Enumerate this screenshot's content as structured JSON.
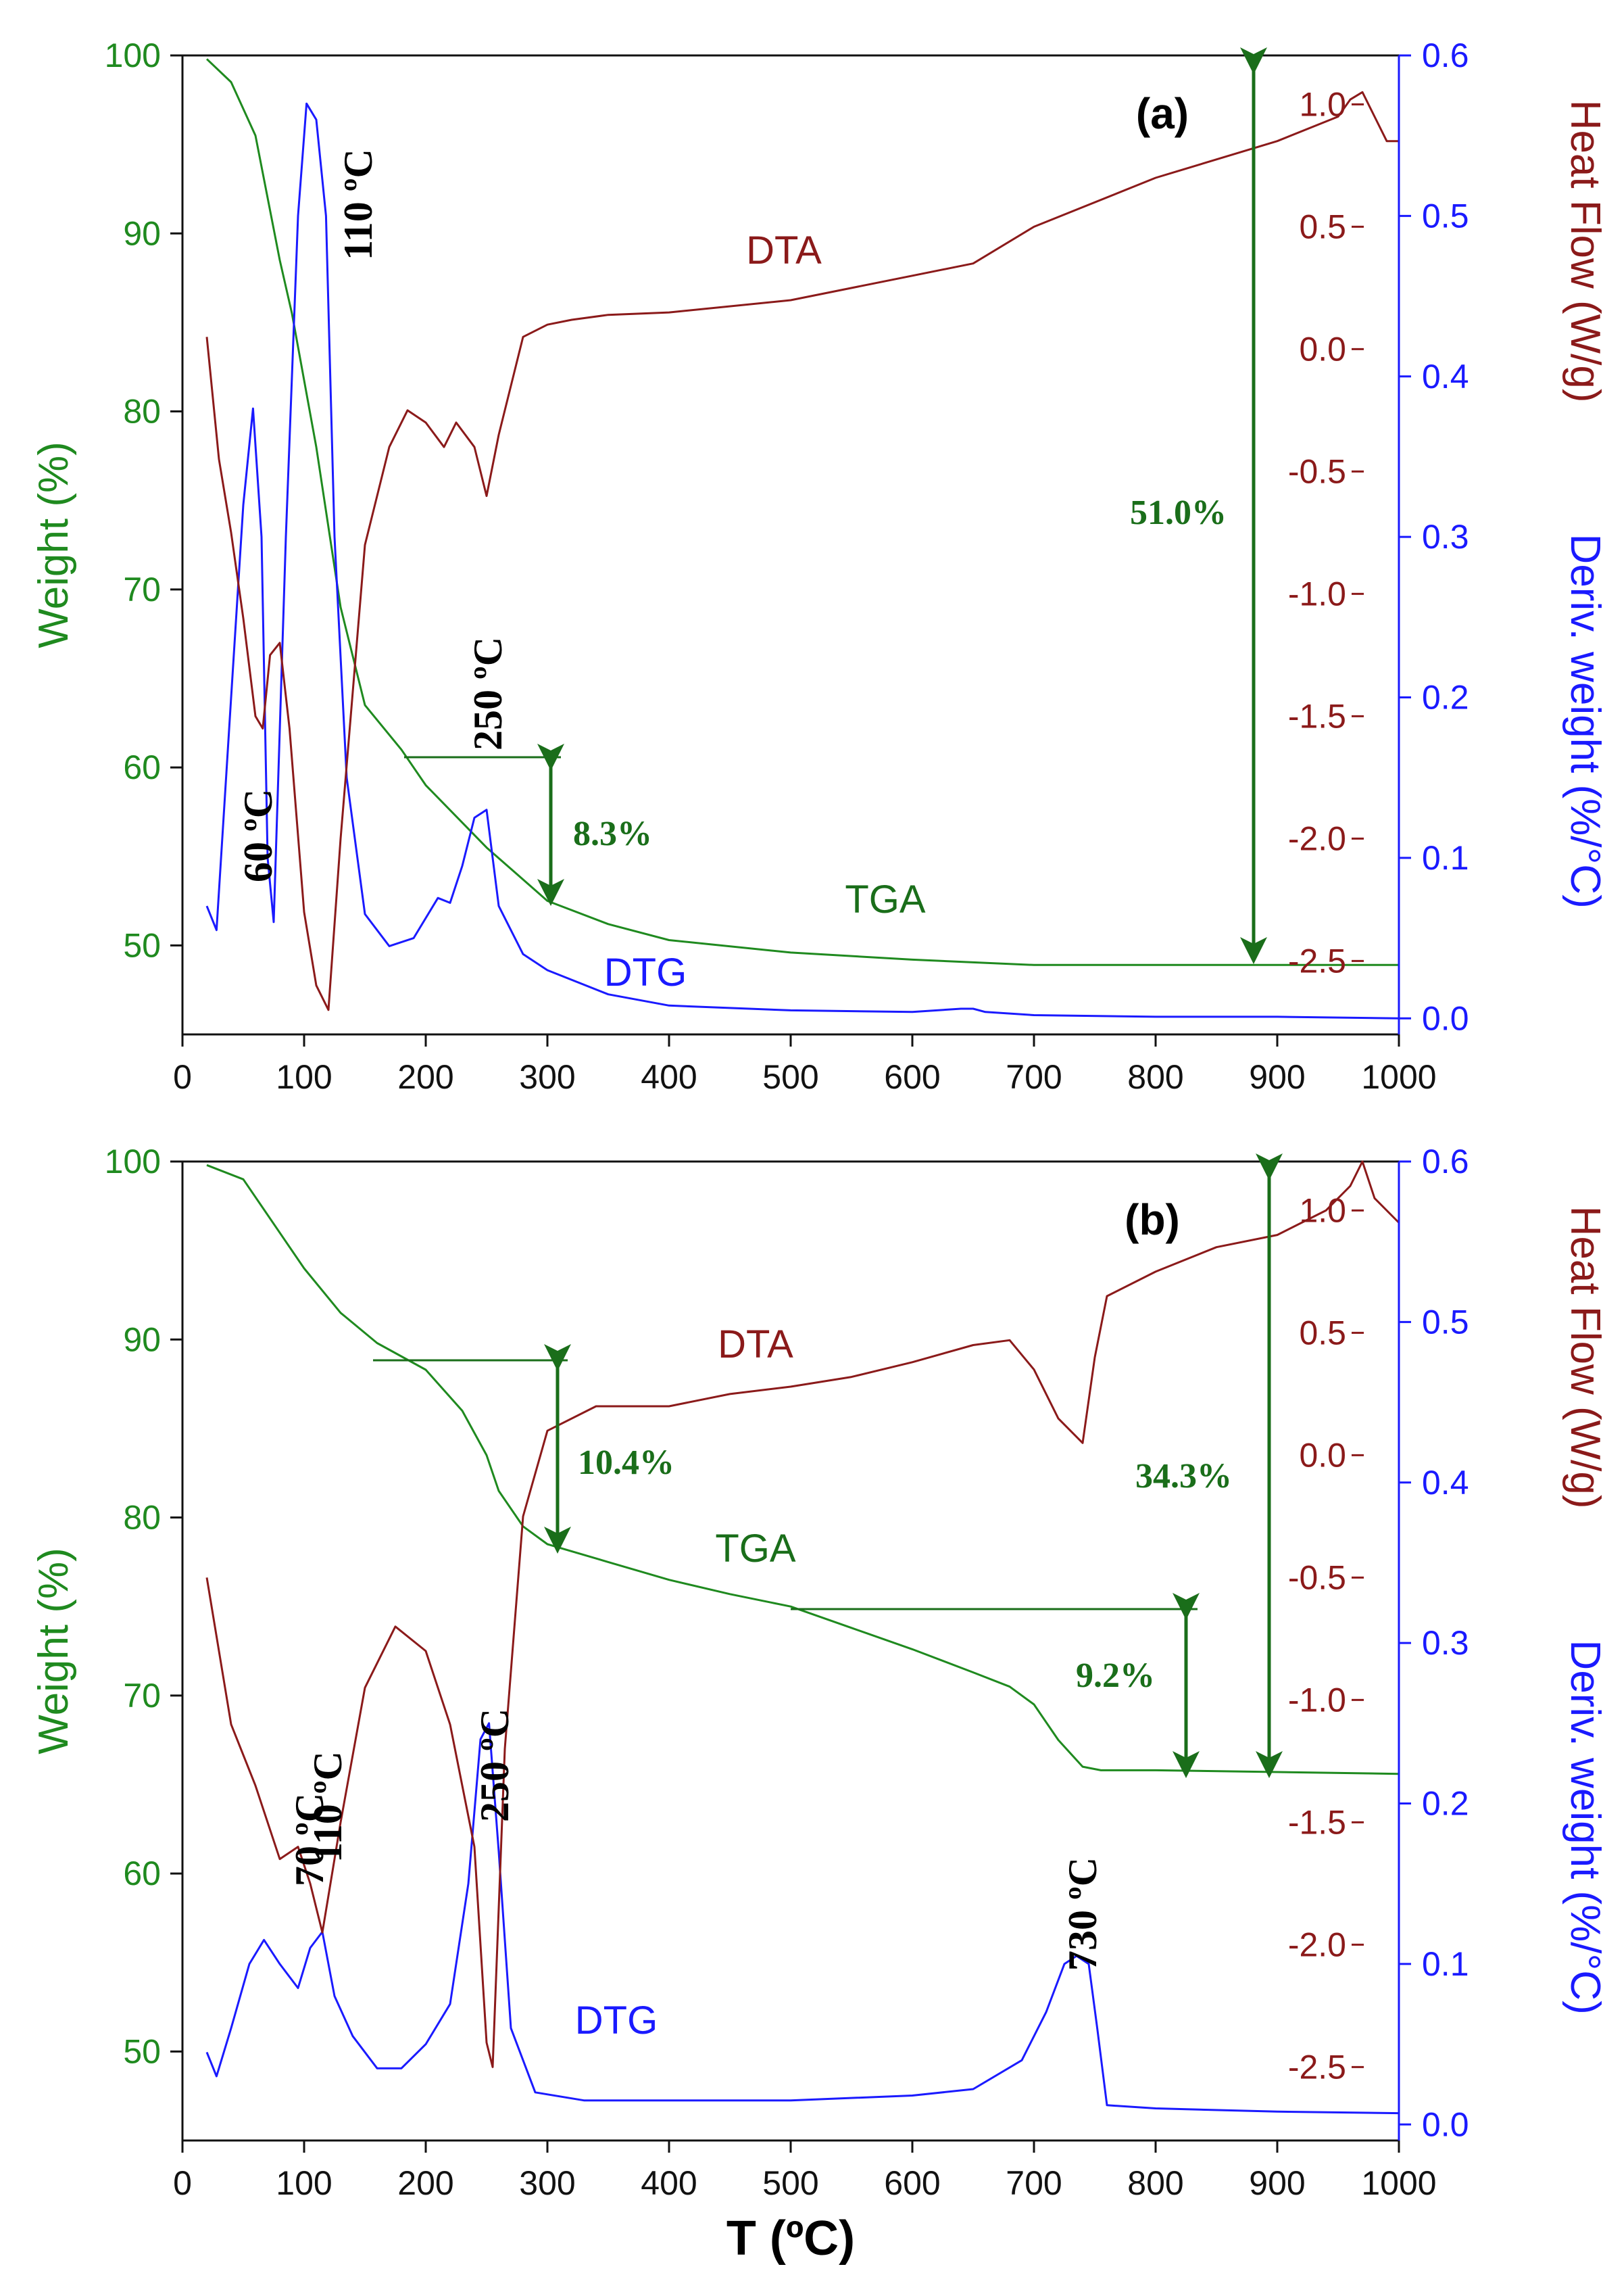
{
  "chart_data": [
    {
      "panel_label": "(a)",
      "type": "line",
      "title": "",
      "xlabel": "",
      "xlim": [
        0,
        1000
      ],
      "x_ticks": [
        "0",
        "100",
        "200",
        "300",
        "400",
        "500",
        "600",
        "700",
        "800",
        "900",
        "1000"
      ],
      "y_left": {
        "label": "Weight (%)",
        "lim": [
          45,
          100
        ],
        "ticks": [
          "50",
          "60",
          "70",
          "80",
          "90",
          "100"
        ],
        "tick_values": [
          50,
          60,
          70,
          80,
          90,
          100
        ],
        "color": "#1f8a1f"
      },
      "y_right_outer": {
        "label": "Deriv. weight (%/°C)",
        "lim": [
          -0.01,
          0.6
        ],
        "ticks": [
          "0.0",
          "0.1",
          "0.2",
          "0.3",
          "0.4",
          "0.5",
          "0.6"
        ],
        "tick_values": [
          0,
          0.1,
          0.2,
          0.3,
          0.4,
          0.5,
          0.6
        ],
        "color": "#1a1aff"
      },
      "y_right_inner": {
        "label": "Heat Flow (W/g)",
        "lim": [
          -2.8,
          1.2
        ],
        "ticks": [
          "-2.5",
          "-2.0",
          "-1.5",
          "-1.0",
          "-0.5",
          "0.0",
          "0.5",
          "1.0"
        ],
        "tick_values": [
          -2.5,
          -2.0,
          -1.5,
          -1.0,
          -0.5,
          0.0,
          0.5,
          1.0
        ],
        "color": "#8b1a1a"
      },
      "series": [
        {
          "name": "TGA",
          "axis": "y_left",
          "color": "#1f8a1f",
          "x": [
            20,
            40,
            60,
            80,
            90,
            110,
            130,
            150,
            180,
            200,
            250,
            300,
            350,
            400,
            500,
            600,
            700,
            800,
            900,
            1000
          ],
          "y": [
            99.8,
            98.5,
            95.5,
            88.5,
            85.5,
            78,
            69,
            63.5,
            61,
            59,
            55.5,
            52.5,
            51.2,
            50.3,
            49.6,
            49.2,
            48.9,
            48.9,
            48.9,
            48.9
          ]
        },
        {
          "name": "DTG",
          "axis": "y_right_outer",
          "color": "#1a1aff",
          "x": [
            20,
            28,
            40,
            50,
            58,
            65,
            70,
            75,
            85,
            95,
            102,
            110,
            118,
            125,
            135,
            150,
            170,
            190,
            210,
            220,
            230,
            240,
            250,
            260,
            280,
            300,
            350,
            400,
            500,
            600,
            640,
            650,
            660,
            700,
            800,
            900,
            1000
          ],
          "y": [
            0.07,
            0.055,
            0.2,
            0.32,
            0.38,
            0.3,
            0.1,
            0.06,
            0.3,
            0.5,
            0.57,
            0.56,
            0.5,
            0.3,
            0.15,
            0.065,
            0.045,
            0.05,
            0.075,
            0.072,
            0.095,
            0.125,
            0.13,
            0.07,
            0.04,
            0.03,
            0.015,
            0.008,
            0.005,
            0.004,
            0.006,
            0.006,
            0.004,
            0.002,
            0.001,
            0.001,
            0.0
          ]
        },
        {
          "name": "DTA",
          "axis": "y_right_inner",
          "color": "#8b1a1a",
          "x": [
            20,
            30,
            40,
            50,
            60,
            66,
            72,
            80,
            88,
            100,
            110,
            120,
            130,
            150,
            170,
            185,
            200,
            215,
            225,
            240,
            250,
            260,
            280,
            300,
            320,
            350,
            400,
            500,
            600,
            650,
            700,
            800,
            900,
            950,
            960,
            970,
            980,
            990,
            1000
          ],
          "y": [
            0.05,
            -0.45,
            -0.75,
            -1.1,
            -1.5,
            -1.55,
            -1.25,
            -1.2,
            -1.55,
            -2.3,
            -2.6,
            -2.7,
            -2.0,
            -0.8,
            -0.4,
            -0.25,
            -0.3,
            -0.4,
            -0.3,
            -0.4,
            -0.6,
            -0.35,
            0.05,
            0.1,
            0.12,
            0.14,
            0.15,
            0.2,
            0.3,
            0.35,
            0.5,
            0.7,
            0.85,
            0.95,
            1.02,
            1.05,
            0.95,
            0.85,
            0.85
          ]
        }
      ],
      "series_labels": [
        "DTA",
        "TGA",
        "DTG"
      ],
      "annotations": {
        "temps": [
          "60 ºC",
          "110 ºC",
          "250 ºC"
        ],
        "mass_losses": [
          "8.3%",
          "51.0%"
        ]
      }
    },
    {
      "panel_label": "(b)",
      "type": "line",
      "title": "",
      "xlabel": "T (ºC)",
      "xlim": [
        0,
        1000
      ],
      "x_ticks": [
        "0",
        "100",
        "200",
        "300",
        "400",
        "500",
        "600",
        "700",
        "800",
        "900",
        "1000"
      ],
      "y_left": {
        "label": "Weight (%)",
        "lim": [
          45,
          100
        ],
        "ticks": [
          "50",
          "60",
          "70",
          "80",
          "90",
          "100"
        ],
        "tick_values": [
          50,
          60,
          70,
          80,
          90,
          100
        ],
        "color": "#1f8a1f"
      },
      "y_right_outer": {
        "label": "Deriv. weight (%/°C)",
        "lim": [
          -0.01,
          0.6
        ],
        "ticks": [
          "0.0",
          "0.1",
          "0.2",
          "0.3",
          "0.4",
          "0.5",
          "0.6"
        ],
        "tick_values": [
          0,
          0.1,
          0.2,
          0.3,
          0.4,
          0.5,
          0.6
        ],
        "color": "#1a1aff"
      },
      "y_right_inner": {
        "label": "Heat Flow (W/g)",
        "lim": [
          -2.8,
          1.2
        ],
        "ticks": [
          "-2.5",
          "-2.0",
          "-1.5",
          "-1.0",
          "-0.5",
          "0.0",
          "0.5",
          "1.0"
        ],
        "tick_values": [
          -2.5,
          -2.0,
          -1.5,
          -1.0,
          -0.5,
          0.0,
          0.5,
          1.0
        ],
        "color": "#8b1a1a"
      },
      "series": [
        {
          "name": "TGA",
          "axis": "y_left",
          "color": "#1f8a1f",
          "x": [
            20,
            50,
            80,
            100,
            130,
            160,
            200,
            230,
            250,
            260,
            280,
            300,
            350,
            400,
            450,
            500,
            550,
            600,
            650,
            680,
            700,
            720,
            740,
            755,
            800,
            900,
            1000
          ],
          "y": [
            99.8,
            99,
            96,
            94,
            91.5,
            89.8,
            88.3,
            86,
            83.5,
            81.5,
            79.5,
            78.5,
            77.5,
            76.5,
            75.7,
            75,
            73.8,
            72.6,
            71.3,
            70.5,
            69.5,
            67.5,
            66,
            65.8,
            65.8,
            65.7,
            65.6
          ]
        },
        {
          "name": "DTG",
          "axis": "y_right_outer",
          "color": "#1a1aff",
          "x": [
            20,
            28,
            40,
            55,
            67,
            80,
            95,
            105,
            115,
            125,
            140,
            160,
            180,
            200,
            220,
            235,
            245,
            252,
            260,
            270,
            290,
            330,
            400,
            500,
            600,
            650,
            690,
            710,
            725,
            735,
            745,
            752,
            760,
            800,
            900,
            1000
          ],
          "y": [
            0.045,
            0.03,
            0.06,
            0.1,
            0.115,
            0.1,
            0.085,
            0.11,
            0.12,
            0.08,
            0.055,
            0.035,
            0.035,
            0.05,
            0.075,
            0.15,
            0.24,
            0.25,
            0.17,
            0.06,
            0.02,
            0.015,
            0.015,
            0.015,
            0.018,
            0.022,
            0.04,
            0.07,
            0.1,
            0.105,
            0.1,
            0.06,
            0.012,
            0.01,
            0.008,
            0.007
          ]
        },
        {
          "name": "DTA",
          "axis": "y_right_inner",
          "color": "#8b1a1a",
          "x": [
            20,
            40,
            60,
            80,
            95,
            105,
            115,
            130,
            150,
            175,
            200,
            220,
            240,
            250,
            255,
            265,
            280,
            300,
            340,
            400,
            450,
            500,
            550,
            600,
            650,
            680,
            700,
            720,
            740,
            750,
            760,
            800,
            850,
            900,
            940,
            960,
            970,
            980,
            1000
          ],
          "y": [
            -0.5,
            -1.1,
            -1.35,
            -1.65,
            -1.6,
            -1.75,
            -1.95,
            -1.5,
            -0.95,
            -0.7,
            -0.8,
            -1.1,
            -1.6,
            -2.4,
            -2.5,
            -1.2,
            -0.25,
            0.1,
            0.2,
            0.2,
            0.25,
            0.28,
            0.32,
            0.38,
            0.45,
            0.47,
            0.35,
            0.15,
            0.05,
            0.4,
            0.65,
            0.75,
            0.85,
            0.9,
            1.0,
            1.1,
            1.2,
            1.05,
            0.95
          ]
        }
      ],
      "series_labels": [
        "DTA",
        "TGA",
        "DTG"
      ],
      "annotations": {
        "temps": [
          "70 ºC",
          "110 ºC",
          "250 ºC",
          "730 ºC"
        ],
        "mass_losses": [
          "10.4%",
          "9.2%",
          "34.3%"
        ]
      }
    }
  ]
}
